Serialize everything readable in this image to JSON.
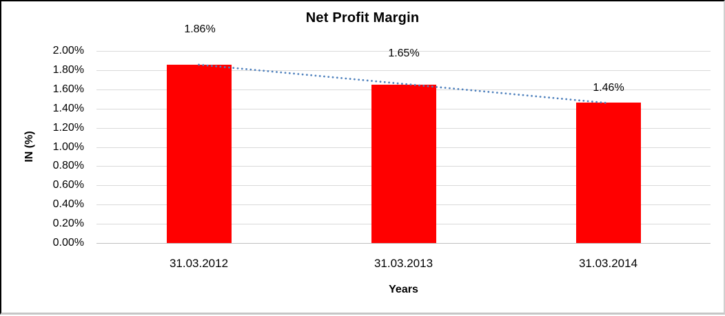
{
  "chart_data": {
    "type": "bar",
    "title": "Net Profit Margin",
    "xlabel": "Years",
    "ylabel": "IN (%)",
    "categories": [
      "31.03.2012",
      "31.03.2013",
      "31.03.2014"
    ],
    "values": [
      1.86,
      1.65,
      1.46
    ],
    "data_labels": [
      "1.86%",
      "1.65%",
      "1.46%"
    ],
    "ylim": [
      0,
      2
    ],
    "ytick_step": 0.2,
    "ytick_labels_top_to_bottom": [
      "2.00%",
      "1.80%",
      "1.60%",
      "1.40%",
      "1.20%",
      "1.00%",
      "0.80%",
      "0.60%",
      "0.40%",
      "0.20%",
      "0.00%"
    ],
    "grid": true,
    "legend_position": "none",
    "bar_color": "#ff0000",
    "gridline_color": "#d9d9d9",
    "axis_line_color": "#bfbfbf",
    "trendline": {
      "type": "linear",
      "style": "dotted",
      "color": "#4f81bd",
      "endpoint_values": [
        1.857,
        1.457
      ]
    }
  }
}
